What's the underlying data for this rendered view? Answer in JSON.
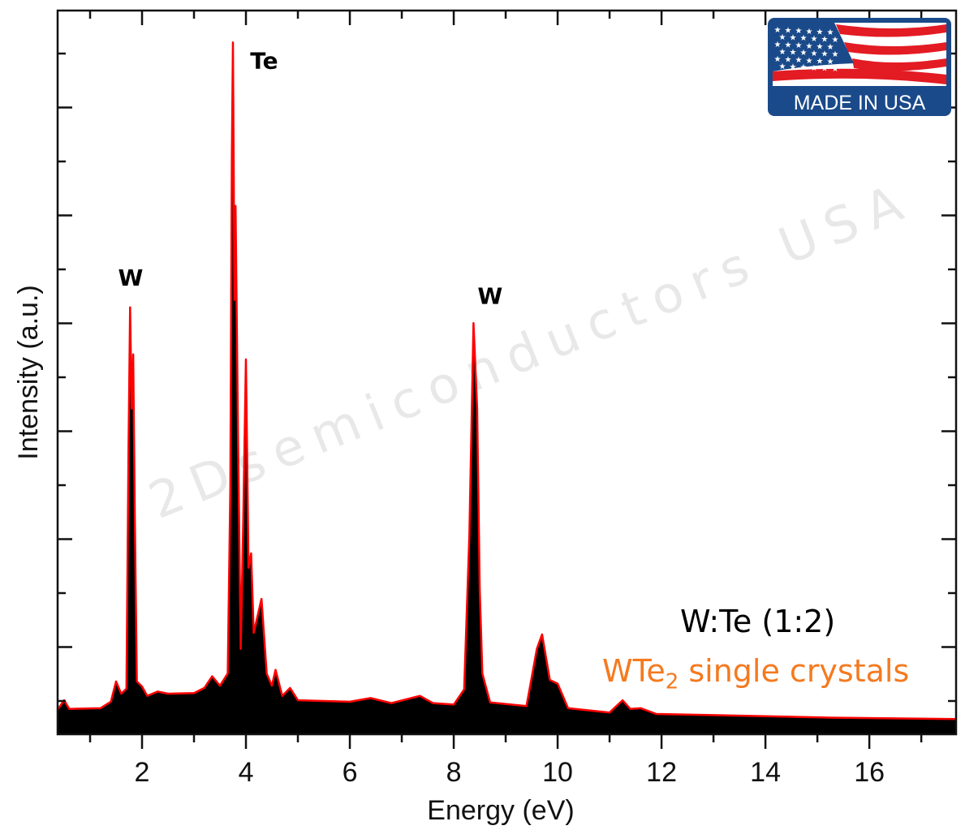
{
  "chart_data": {
    "type": "area",
    "title": "",
    "xlabel": "Energy (eV)",
    "ylabel": "Intensity (a.u.)",
    "xlim": [
      0.375,
      17.67
    ],
    "ylim": [
      0,
      100
    ],
    "x_ticks": [
      2,
      4,
      6,
      8,
      10,
      12,
      14,
      16
    ],
    "y_tick_labels_shown": false,
    "grid": false,
    "fill_color": "#000000",
    "line_color": "#ff0000",
    "series": [
      {
        "x": [
          0.375,
          0.5,
          0.6,
          1.2,
          1.4,
          1.5,
          1.6,
          1.7,
          1.74,
          1.77,
          1.8,
          1.83,
          1.86,
          1.9,
          2.0,
          2.1,
          2.3,
          2.5,
          3.0,
          3.2,
          3.35,
          3.5,
          3.65,
          3.7,
          3.73,
          3.75,
          3.78,
          3.8,
          3.85,
          3.9,
          3.95,
          4.0,
          4.05,
          4.1,
          4.15,
          4.3,
          4.4,
          4.5,
          4.57,
          4.7,
          4.85,
          5.0,
          6.0,
          6.4,
          6.8,
          7.35,
          7.6,
          8.0,
          8.2,
          8.3,
          8.38,
          8.45,
          8.5,
          8.55,
          8.7,
          9.4,
          9.6,
          9.7,
          9.85,
          10.0,
          10.2,
          11.0,
          11.25,
          11.4,
          11.6,
          11.9,
          14.0,
          15.2,
          17.67
        ],
        "y": [
          3.4,
          4.7,
          3.5,
          3.6,
          4.5,
          7.3,
          5.6,
          6.3,
          40,
          59,
          45,
          52.5,
          30,
          7.3,
          6.6,
          5.3,
          5.9,
          5.6,
          5.7,
          6.4,
          8.0,
          6.7,
          8.4,
          34,
          80,
          95.6,
          60,
          73,
          40,
          11.8,
          30,
          51.8,
          23,
          25,
          14,
          18.7,
          8.4,
          6.7,
          8.9,
          5.3,
          6.4,
          4.7,
          4.5,
          5.0,
          4.3,
          5.3,
          4.3,
          4.1,
          6.2,
          27.5,
          56.8,
          45,
          20,
          8.4,
          4.4,
          3.9,
          11.8,
          13.8,
          7.5,
          7.0,
          3.6,
          3.0,
          4.7,
          3.5,
          3.6,
          2.8,
          2.5,
          2.3,
          2.1
        ]
      }
    ],
    "annotations": [
      {
        "text": "W",
        "x": 1.78,
        "y": 62
      },
      {
        "text": "Te",
        "x": 4.35,
        "y": 92
      },
      {
        "text": "W",
        "x": 8.7,
        "y": 59.5
      }
    ]
  },
  "notes": {
    "ratio": "W:Te (1:2)",
    "material_main": "WTe",
    "material_sub": "2",
    "material_rest": " single crystals",
    "material_color": "#f47a20"
  },
  "watermark": "2Dsemiconductors USA",
  "badge": {
    "text": "MADE IN USA",
    "colors": {
      "blue": "#1a4a8a",
      "red": "#e31b23"
    }
  }
}
